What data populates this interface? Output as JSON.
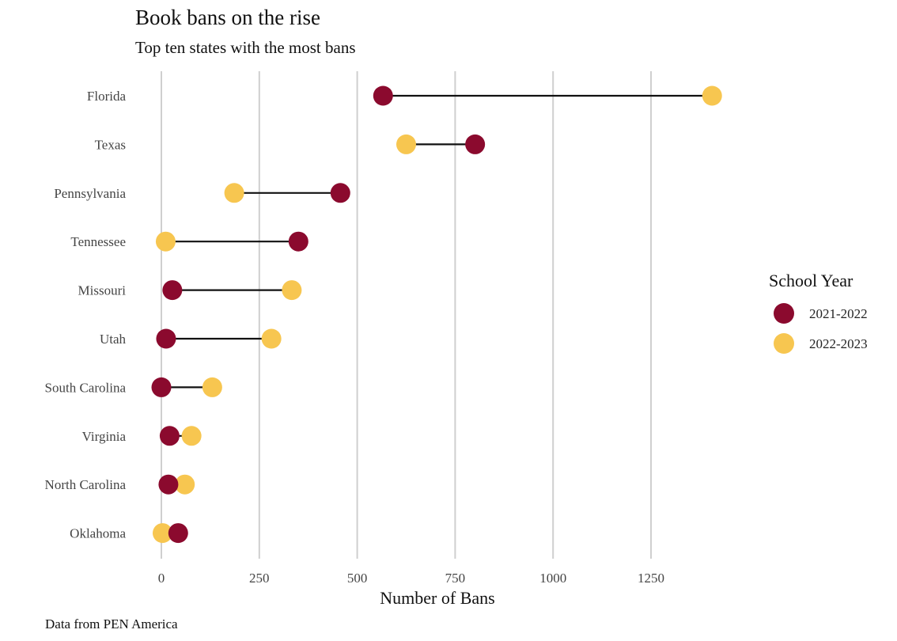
{
  "chart_data": {
    "type": "dumbbell",
    "title": "Book bans on the rise",
    "subtitle": "Top ten states with the most bans",
    "xlabel": "Number of Bans",
    "ylabel": "",
    "caption": "Data from PEN America",
    "xlim": [
      -30,
      1430
    ],
    "x_ticks": [
      0,
      250,
      500,
      750,
      1000,
      1250
    ],
    "grid": "vertical major",
    "legend": {
      "title": "School Year",
      "position": "right",
      "entries": [
        {
          "label": "2021-2022",
          "color": "#8B0A2E"
        },
        {
          "label": "2022-2023",
          "color": "#F7C650"
        }
      ]
    },
    "categories": [
      "Florida",
      "Texas",
      "Pennsylvania",
      "Tennessee",
      "Missouri",
      "Utah",
      "South Carolina",
      "Virginia",
      "North Carolina",
      "Oklahoma"
    ],
    "series": [
      {
        "name": "2021-2022",
        "color": "#8B0A2E",
        "values": [
          566,
          801,
          457,
          350,
          28,
          12,
          0,
          21,
          18,
          43
        ]
      },
      {
        "name": "2022-2023",
        "color": "#F7C650",
        "values": [
          1406,
          625,
          186,
          11,
          333,
          281,
          130,
          77,
          60,
          3
        ]
      }
    ]
  }
}
